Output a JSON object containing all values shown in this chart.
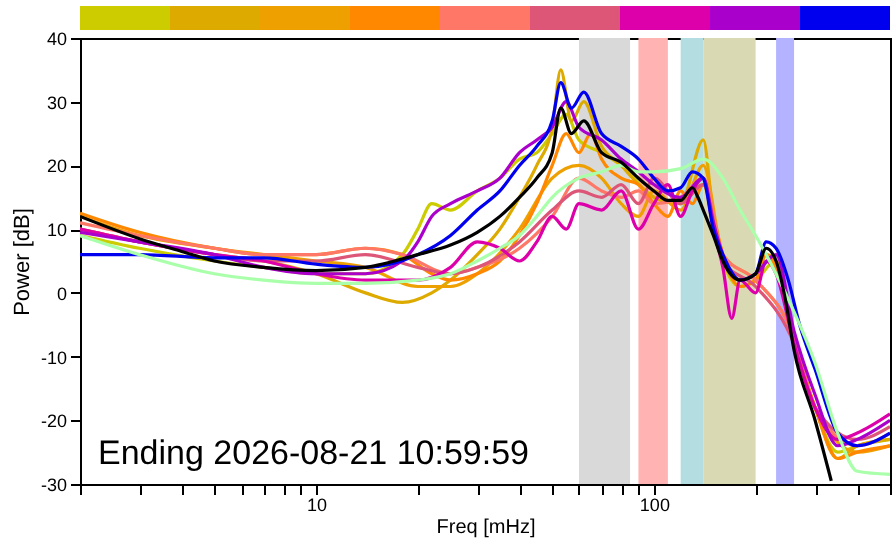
{
  "chart_data": {
    "type": "line",
    "xlabel": "Freq [mHz]",
    "ylabel": "Power [dB]",
    "log": "x",
    "xlim": [
      2,
      500
    ],
    "ylim": [
      -30,
      40
    ],
    "xticks": [
      {
        "value": 2,
        "label": null
      },
      {
        "value": 3,
        "label": null
      },
      {
        "value": 4,
        "label": null
      },
      {
        "value": 5,
        "label": null
      },
      {
        "value": 6,
        "label": null
      },
      {
        "value": 7,
        "label": null
      },
      {
        "value": 8,
        "label": null
      },
      {
        "value": 9,
        "label": null
      },
      10,
      {
        "value": 20,
        "label": null
      },
      {
        "value": 30,
        "label": null
      },
      {
        "value": 40,
        "label": null
      },
      {
        "value": 50,
        "label": null
      },
      {
        "value": 60,
        "label": null
      },
      {
        "value": 70,
        "label": null
      },
      {
        "value": 80,
        "label": null
      },
      {
        "value": 90,
        "label": null
      },
      100,
      {
        "value": 200,
        "label": null
      },
      {
        "value": 300,
        "label": null
      },
      {
        "value": 400,
        "label": null
      },
      {
        "value": 500,
        "label": null
      }
    ],
    "yticks": [
      -30,
      -20,
      -10,
      0,
      10,
      20,
      30,
      40
    ],
    "grid": false,
    "annotations": [
      "Ending 2026-08-21 10:59:59"
    ],
    "bands": [
      {
        "axis": "x",
        "from": 60,
        "to": 85,
        "color": "#d9d9d9"
      },
      {
        "axis": "x",
        "from": 90,
        "to": 110,
        "color": "#ffb3b3"
      },
      {
        "axis": "x",
        "from": 120,
        "to": 140,
        "color": "#b3dde0"
      },
      {
        "axis": "x",
        "from": 140,
        "to": 200,
        "color": "#d9d9b3"
      },
      {
        "axis": "x",
        "from": 230,
        "to": 260,
        "color": "#b3b3ff"
      }
    ],
    "series": [
      {
        "color": "#cccc00",
        "x": [
          2,
          3,
          5,
          7,
          10,
          14,
          18,
          20,
          22,
          25,
          30,
          35,
          40,
          45,
          50,
          55,
          60,
          70,
          80,
          100,
          120,
          140,
          150,
          160,
          180,
          200,
          230,
          260,
          300,
          350,
          400,
          500
        ],
        "values": [
          9,
          7,
          5,
          4,
          3,
          3,
          6,
          10,
          14,
          13,
          16,
          18,
          21,
          22,
          25,
          28,
          24,
          22,
          20,
          15,
          14,
          17,
          11,
          5,
          1,
          2,
          5,
          -7,
          -18,
          -25,
          -24,
          -23
        ]
      },
      {
        "color": "#ddaa00",
        "x": [
          2,
          3,
          5,
          7,
          10,
          14,
          18,
          22,
          25,
          30,
          35,
          40,
          45,
          50,
          53,
          57,
          62,
          70,
          80,
          90,
          100,
          120,
          140,
          150,
          160,
          180,
          200,
          215,
          230,
          260,
          300,
          350,
          400,
          500
        ],
        "values": [
          10,
          8,
          6,
          5,
          3,
          0,
          -1.5,
          0,
          2,
          6,
          10,
          15,
          20,
          26,
          35,
          27,
          30,
          23,
          20,
          17,
          15,
          14,
          24,
          12,
          6,
          1,
          2,
          6,
          5,
          -7,
          -18,
          -26,
          -24,
          -23
        ]
      },
      {
        "color": "#eea000",
        "x": [
          2,
          3,
          5,
          7,
          10,
          14,
          20,
          25,
          30,
          40,
          50,
          60,
          70,
          80,
          90,
          100,
          120,
          140,
          160,
          200,
          260,
          300,
          400,
          500
        ],
        "values": [
          12,
          9,
          7,
          6,
          5,
          4,
          1,
          1,
          3,
          10,
          18,
          20,
          18,
          14,
          12,
          16,
          13,
          20,
          6,
          2,
          -7,
          -18,
          -25,
          -24
        ]
      },
      {
        "color": "#ff8800",
        "x": [
          2,
          3,
          5,
          7,
          10,
          14,
          18,
          22,
          25,
          30,
          35,
          40,
          45,
          50,
          55,
          60,
          65,
          70,
          80,
          90,
          100,
          110,
          120,
          130,
          140,
          150,
          160,
          180,
          200,
          215,
          230,
          260,
          300,
          350,
          400,
          500
        ],
        "values": [
          12.5,
          9.5,
          7,
          6,
          6,
          7,
          6,
          3,
          2,
          3,
          5,
          9,
          14,
          20,
          25,
          22,
          25,
          21,
          18,
          17,
          14,
          12,
          16,
          14,
          17,
          12,
          6,
          1,
          2,
          6,
          4,
          -8,
          -18,
          -26,
          -25,
          -24
        ]
      },
      {
        "color": "#ff7766",
        "x": [
          2,
          3,
          5,
          7,
          10,
          14,
          18,
          25,
          30,
          40,
          50,
          60,
          70,
          80,
          90,
          100,
          120,
          140,
          160,
          200,
          260,
          300,
          400,
          500
        ],
        "values": [
          11,
          9,
          7,
          6,
          6,
          7,
          6,
          3,
          4,
          7,
          12,
          18,
          16,
          15,
          16,
          14,
          15,
          18,
          6,
          2,
          -7,
          -18,
          -24,
          -22
        ]
      },
      {
        "color": "#dd5577",
        "x": [
          2,
          3,
          5,
          7,
          10,
          14,
          20,
          25,
          30,
          40,
          50,
          60,
          70,
          80,
          90,
          100,
          120,
          140,
          160,
          200,
          260,
          300,
          400,
          500
        ],
        "values": [
          10,
          8,
          6,
          5,
          5,
          6,
          4,
          3,
          4,
          8,
          13,
          16,
          15,
          17,
          14,
          18,
          14,
          17,
          5,
          1,
          -8,
          -18,
          -23,
          -21
        ]
      },
      {
        "color": "#dd00aa",
        "x": [
          2,
          3,
          5,
          7,
          10,
          14,
          20,
          25,
          30,
          35,
          40,
          45,
          50,
          55,
          60,
          70,
          80,
          90,
          100,
          110,
          120,
          130,
          140,
          150,
          160,
          170,
          180,
          200,
          215,
          230,
          260,
          300,
          350,
          400,
          500
        ],
        "values": [
          10,
          8,
          6,
          5,
          3,
          2,
          2,
          4,
          8,
          7,
          5,
          8,
          12,
          10,
          14,
          13,
          16,
          10,
          14,
          17,
          12,
          16,
          18,
          10,
          4,
          -4,
          2,
          0,
          5,
          3,
          -8,
          -18,
          -23,
          -22,
          -19
        ]
      },
      {
        "color": "#aa00cc",
        "x": [
          2,
          3,
          5,
          7,
          10,
          14,
          18,
          20,
          22,
          25,
          30,
          35,
          40,
          45,
          50,
          55,
          60,
          70,
          80,
          90,
          100,
          120,
          140,
          150,
          160,
          180,
          200,
          230,
          260,
          300,
          350,
          400,
          500
        ],
        "values": [
          9.5,
          8,
          6,
          4,
          3,
          3,
          5,
          8,
          12,
          14,
          16,
          18,
          22,
          24,
          26,
          30,
          26,
          24,
          21,
          19,
          17,
          15,
          18,
          11,
          6,
          2,
          3,
          6,
          -6,
          -16,
          -24,
          -23,
          -20
        ]
      },
      {
        "color": "#0000ee",
        "x": [
          2,
          3,
          5,
          7,
          10,
          14,
          20,
          25,
          30,
          35,
          40,
          45,
          50,
          53,
          57,
          62,
          70,
          80,
          90,
          100,
          110,
          120,
          130,
          140,
          150,
          160,
          180,
          200,
          215,
          230,
          250,
          270,
          300,
          350,
          400,
          500
        ],
        "values": [
          6,
          6,
          5.5,
          5.5,
          4.5,
          4,
          6,
          9,
          13,
          16,
          20,
          23,
          27,
          33,
          29,
          31.5,
          25,
          23,
          21,
          18,
          16,
          16.5,
          19,
          18,
          10,
          6,
          2,
          3,
          8,
          7,
          2,
          -5,
          -12,
          -22,
          -24,
          -22
        ]
      },
      {
        "color": "#aaffaa",
        "x": [
          2,
          3,
          5,
          7,
          10,
          14,
          20,
          25,
          30,
          35,
          40,
          45,
          50,
          60,
          70,
          80,
          90,
          100,
          120,
          140,
          160,
          180,
          200,
          230,
          260,
          300,
          350,
          400,
          500
        ],
        "values": [
          9,
          6,
          3,
          2,
          1.5,
          1.5,
          2,
          3,
          5,
          7,
          9,
          12,
          15,
          18,
          19,
          20,
          19,
          19,
          19.5,
          21,
          18,
          13,
          9,
          3,
          -3,
          -11,
          -22,
          -28,
          -28.5
        ]
      },
      {
        "color": "#000000",
        "x": [
          2,
          3,
          4,
          5,
          7,
          10,
          14,
          20,
          25,
          30,
          35,
          40,
          45,
          50,
          53,
          57,
          62,
          70,
          80,
          90,
          100,
          110,
          120,
          130,
          135,
          140,
          150,
          160,
          180,
          200,
          215,
          230,
          245,
          260,
          300,
          335
        ],
        "values": [
          12,
          8.5,
          6.5,
          5,
          4,
          3.5,
          4,
          6,
          7.5,
          9.5,
          12,
          15,
          18,
          22,
          29,
          25,
          27,
          22,
          20.5,
          18,
          16,
          14.5,
          14.5,
          16.5,
          15,
          13,
          9,
          5,
          2,
          3,
          7,
          5,
          -1,
          -9,
          -20,
          -29.5
        ]
      }
    ]
  }
}
